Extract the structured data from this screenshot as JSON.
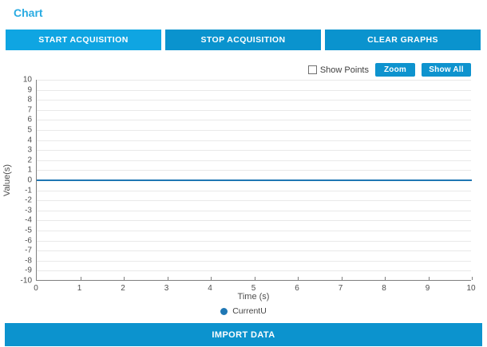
{
  "page": {
    "title": "Chart",
    "title_color": "#29ABE2",
    "background": "#ffffff"
  },
  "toolbar": {
    "buttons": [
      {
        "label": "START ACQUISITION",
        "color": "#0FA5E2"
      },
      {
        "label": "STOP ACQUISITION",
        "color": "#0A93CE"
      },
      {
        "label": "CLEAR GRAPHS",
        "color": "#0A93CE"
      }
    ]
  },
  "chart_controls": {
    "show_points_label": "Show Points",
    "show_points_checked": false,
    "zoom_label": "Zoom",
    "show_all_label": "Show All",
    "button_color": "#0E93CE"
  },
  "chart_data": {
    "type": "line",
    "title": "",
    "xlabel": "Time (s)",
    "ylabel": "Value(s)",
    "xlim": [
      0,
      10
    ],
    "ylim": [
      -10,
      10
    ],
    "xtick_step": 1,
    "ytick_step": 1,
    "grid": true,
    "grid_color": "#E9E9E9",
    "axis_color": "#7F7F7F",
    "legend_position": "bottom",
    "series": [
      {
        "name": "CurrentU",
        "color": "#1F77B4",
        "x": [
          0,
          10
        ],
        "y": [
          0,
          0
        ]
      }
    ]
  },
  "footer": {
    "import_label": "IMPORT DATA",
    "color": "#0C93CE"
  }
}
